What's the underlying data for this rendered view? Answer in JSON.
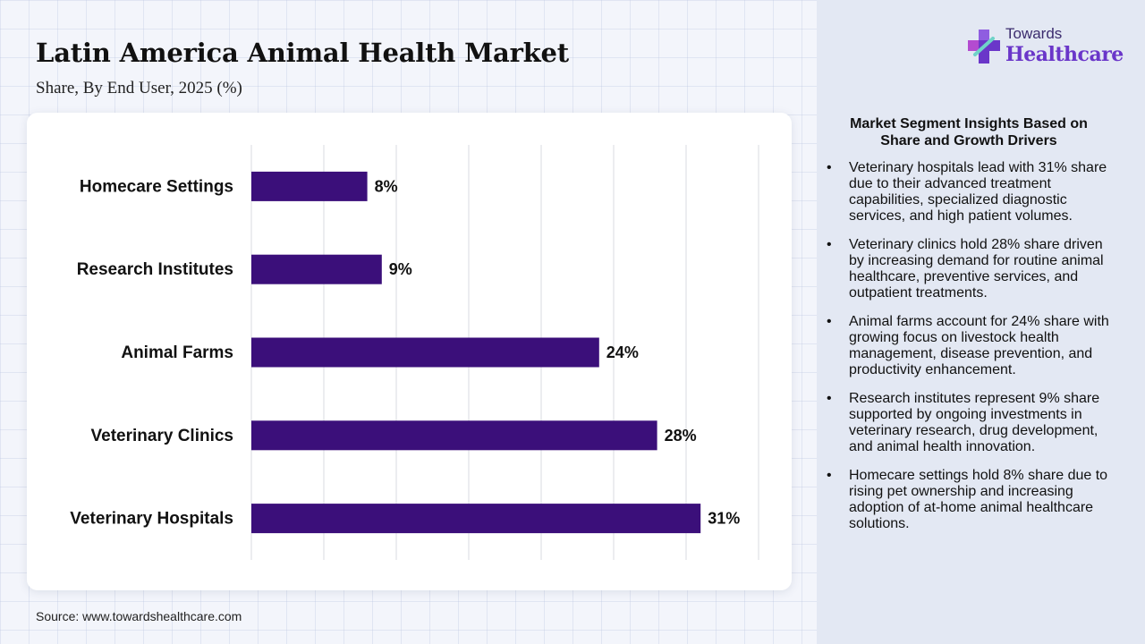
{
  "header": {
    "title": "Latin America Animal Health Market",
    "subtitle": "Share, By End User, 2025 (%)"
  },
  "logo": {
    "line1": "Towards",
    "line2": "Healthcare",
    "icon": "cross-logo-icon"
  },
  "chart_data": {
    "type": "bar",
    "orientation": "horizontal",
    "categories": [
      "Homecare Settings",
      "Research Institutes",
      "Animal Farms",
      "Veterinary Clinics",
      "Veterinary Hospitals"
    ],
    "values": [
      8,
      9,
      24,
      28,
      31
    ],
    "value_labels": [
      "8%",
      "9%",
      "24%",
      "28%",
      "31%"
    ],
    "xlim": [
      0,
      35
    ],
    "grid": true,
    "bar_color": "#3b0f7a"
  },
  "insights": {
    "title": "Market Segment Insights Based on Share and Growth Drivers",
    "bullet": "•",
    "items": [
      "Veterinary hospitals lead with 31% share due to their advanced treatment capabilities, specialized diagnostic services, and high patient volumes.",
      "Veterinary clinics hold 28% share driven by increasing demand for routine animal healthcare, preventive services, and outpatient treatments.",
      "Animal farms account for 24% share with growing focus on livestock health management, disease prevention, and productivity enhancement.",
      "Research institutes represent 9% share supported by ongoing investments in veterinary research, drug development, and animal health innovation.",
      "Homecare settings hold 8% share due to rising pet ownership and increasing adoption of at-home animal healthcare solutions."
    ]
  },
  "source": "Source: www.towardshealthcare.com",
  "colors": {
    "bar": "#3b0f7a",
    "panel": "#e3e8f3",
    "logo_purple": "#6a36c9"
  }
}
